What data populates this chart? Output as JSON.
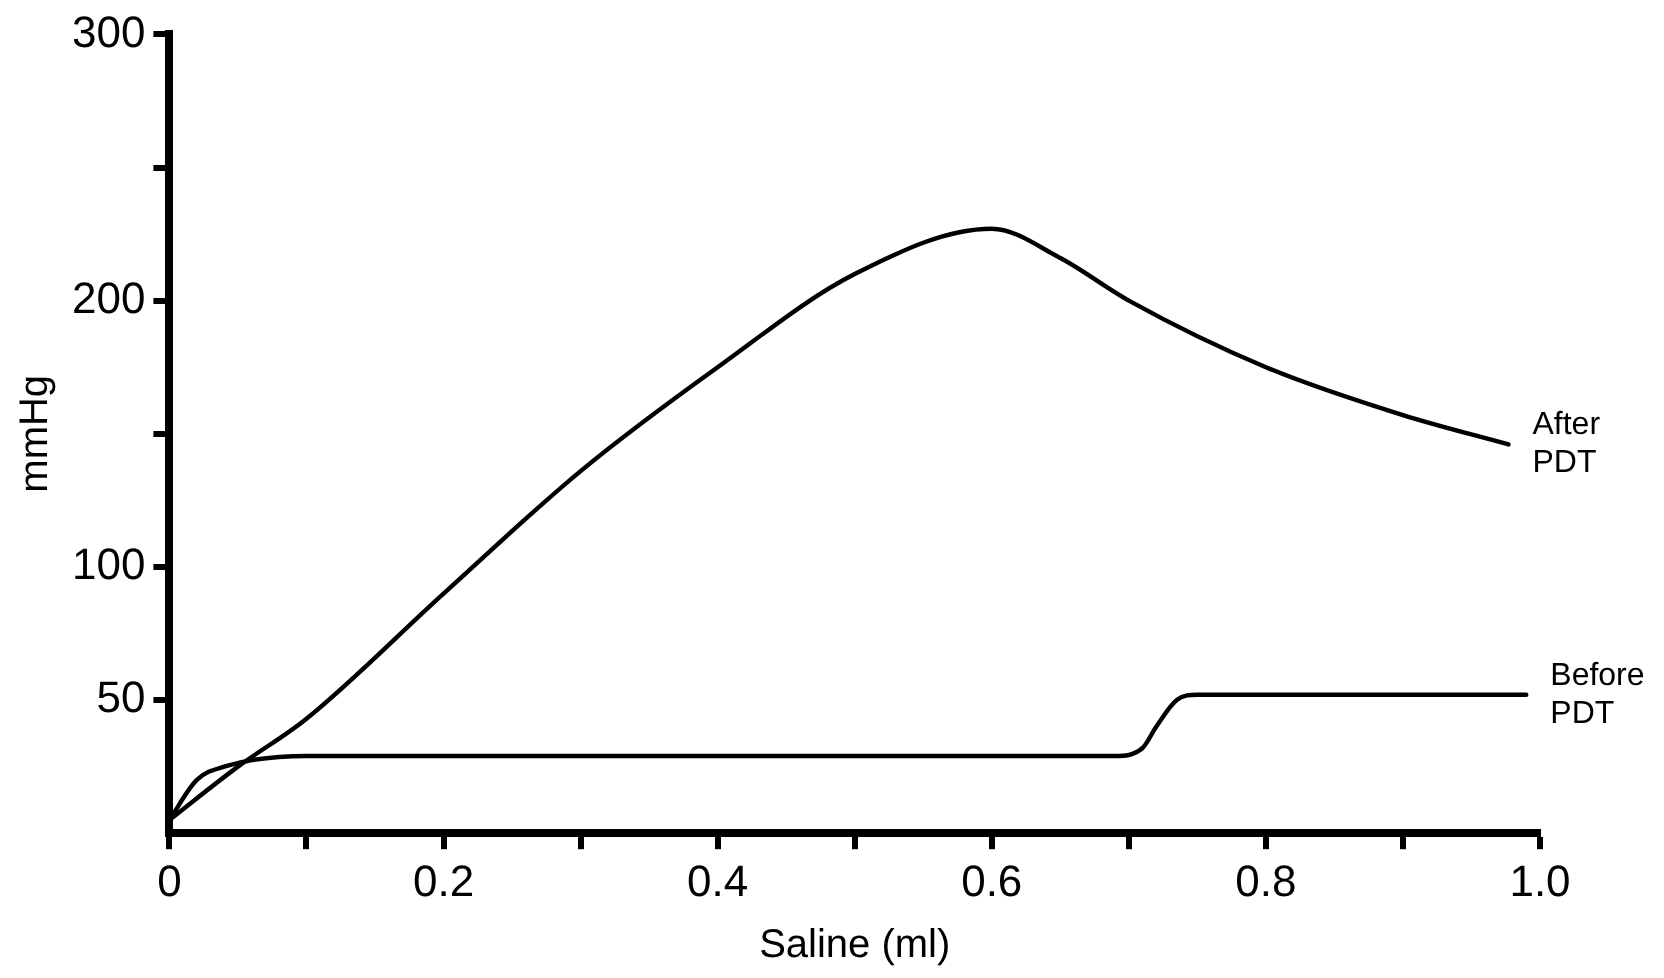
{
  "chart_data": {
    "type": "line",
    "xlabel": "Saline (ml)",
    "ylabel": "mmHg",
    "xlim": [
      0,
      1.0
    ],
    "ylim": [
      0,
      300
    ],
    "xticks": [
      0,
      {
        "value": 0.1,
        "label": null
      },
      0.2,
      {
        "value": 0.3,
        "label": null
      },
      0.4,
      {
        "value": 0.5,
        "label": null
      },
      0.6,
      {
        "value": 0.7,
        "label": null
      },
      0.8,
      {
        "value": 0.9,
        "label": null
      },
      {
        "value": 1.0,
        "label": "1.0"
      }
    ],
    "yticks": [
      50,
      100,
      {
        "value": 150,
        "label": null
      },
      200,
      {
        "value": 250,
        "label": null
      },
      300
    ],
    "grid": false,
    "legend": false,
    "marker": "none",
    "line_style": "solid",
    "series": [
      {
        "name": "After PDT",
        "color": "#000000",
        "x": [
          0,
          0.05,
          0.1,
          0.2,
          0.3,
          0.4,
          0.5,
          0.6,
          0.65,
          0.7,
          0.8,
          0.9,
          0.977
        ],
        "values": [
          5,
          25,
          43,
          90,
          136,
          175,
          210,
          227,
          216,
          200,
          175,
          157,
          146
        ]
      },
      {
        "name": "Before PDT",
        "color": "#000000",
        "x": [
          0,
          0.02,
          0.04,
          0.1,
          0.4,
          0.69,
          0.71,
          0.72,
          0.735,
          0.75,
          0.99
        ],
        "values": [
          5,
          20,
          25,
          29,
          29,
          29,
          32,
          40,
          50,
          52,
          52
        ]
      }
    ]
  }
}
